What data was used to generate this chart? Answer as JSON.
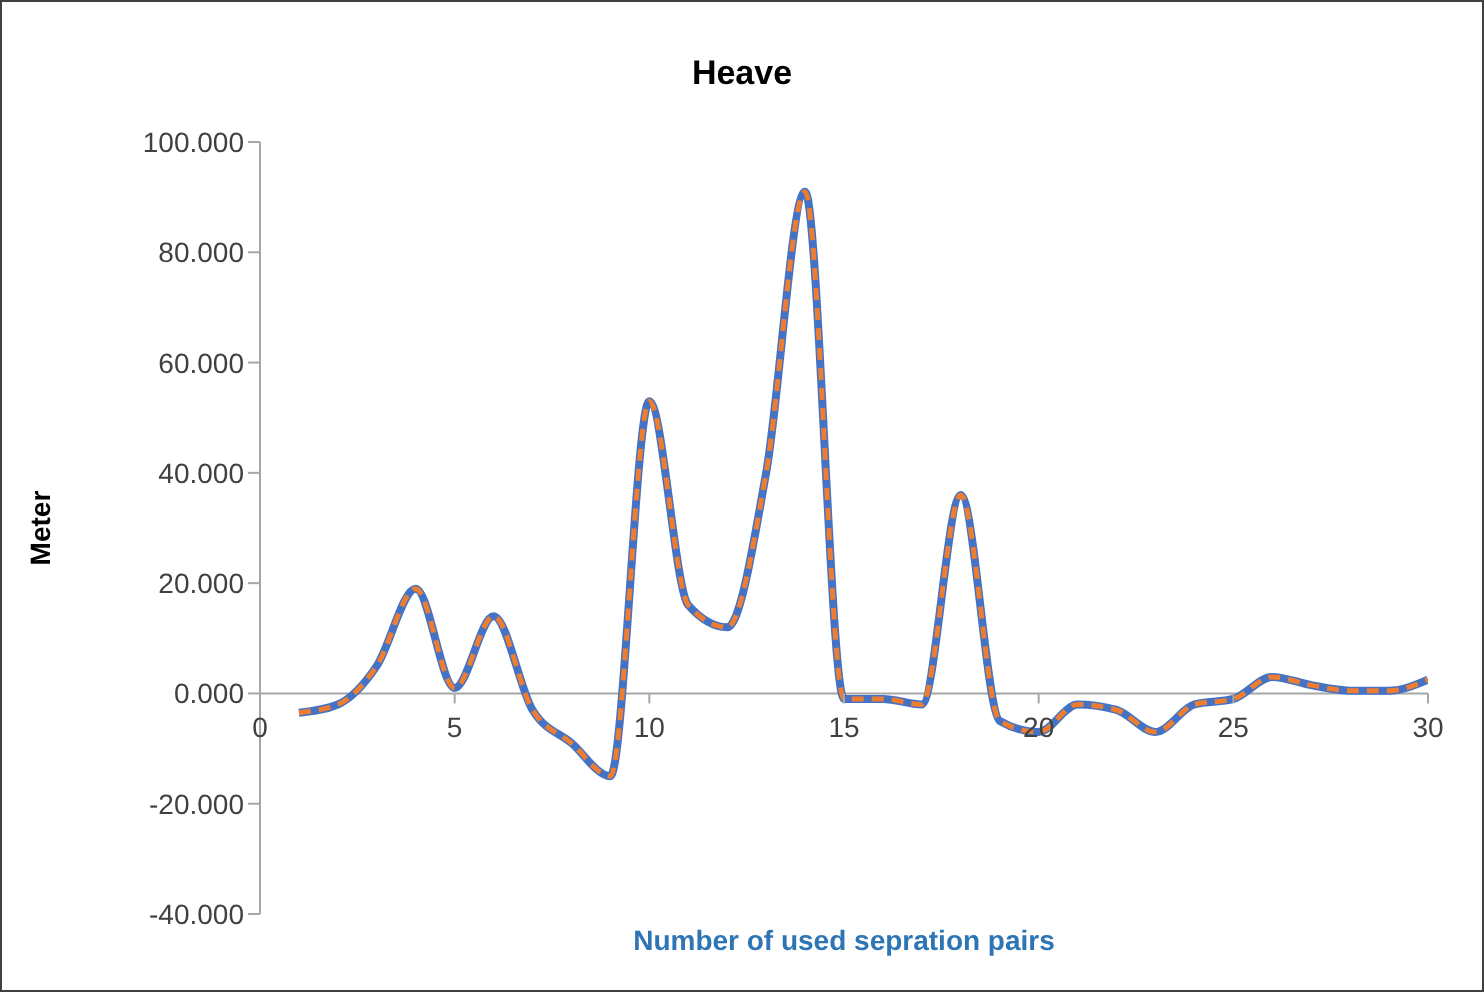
{
  "chart_data": {
    "type": "line",
    "title": "Heave",
    "xlabel": "Number of used sepration pairs",
    "ylabel": "Meter",
    "x": [
      1,
      2,
      3,
      4,
      5,
      6,
      7,
      8,
      9,
      10,
      11,
      12,
      13,
      14,
      15,
      16,
      17,
      18,
      19,
      20,
      21,
      22,
      23,
      24,
      25,
      26,
      27,
      28,
      29,
      30
    ],
    "series": [
      {
        "color": "#4472c4",
        "line_style": "solid",
        "values": [
          -3.5,
          -2,
          5,
          19,
          1,
          14,
          -3,
          -9,
          -15,
          53,
          16,
          12,
          40,
          91,
          -1,
          -1,
          -2,
          36,
          -5,
          -7,
          -2,
          -3,
          -7,
          -2,
          -1,
          3,
          1.5,
          0.5,
          0.5,
          2.5
        ]
      },
      {
        "color": "#ed7d31",
        "line_style": "dashed",
        "values": [
          -3.5,
          -2,
          5,
          19,
          1,
          14,
          -3,
          -9,
          -15,
          53,
          16,
          12,
          40,
          91,
          -1,
          -1,
          -2,
          36,
          -5,
          -7,
          -2,
          -3,
          -7,
          -2,
          -1,
          3,
          1.5,
          0.5,
          0.5,
          2.5
        ]
      }
    ],
    "xlim": [
      0,
      30
    ],
    "xticks": [
      0,
      5,
      10,
      15,
      20,
      25,
      30
    ],
    "ylim": [
      -40,
      100
    ],
    "yticks": [
      {
        "value": -40,
        "label": "-40.000"
      },
      {
        "value": -20,
        "label": "-20.000"
      },
      {
        "value": 0,
        "label": "0.000"
      },
      {
        "value": 20,
        "label": "20.000"
      },
      {
        "value": 40,
        "label": "40.000"
      },
      {
        "value": 60,
        "label": "60.000"
      },
      {
        "value": 80,
        "label": "80.000"
      },
      {
        "value": 100,
        "label": "100.000"
      }
    ],
    "grid": false,
    "legend": false,
    "marker": "none"
  }
}
